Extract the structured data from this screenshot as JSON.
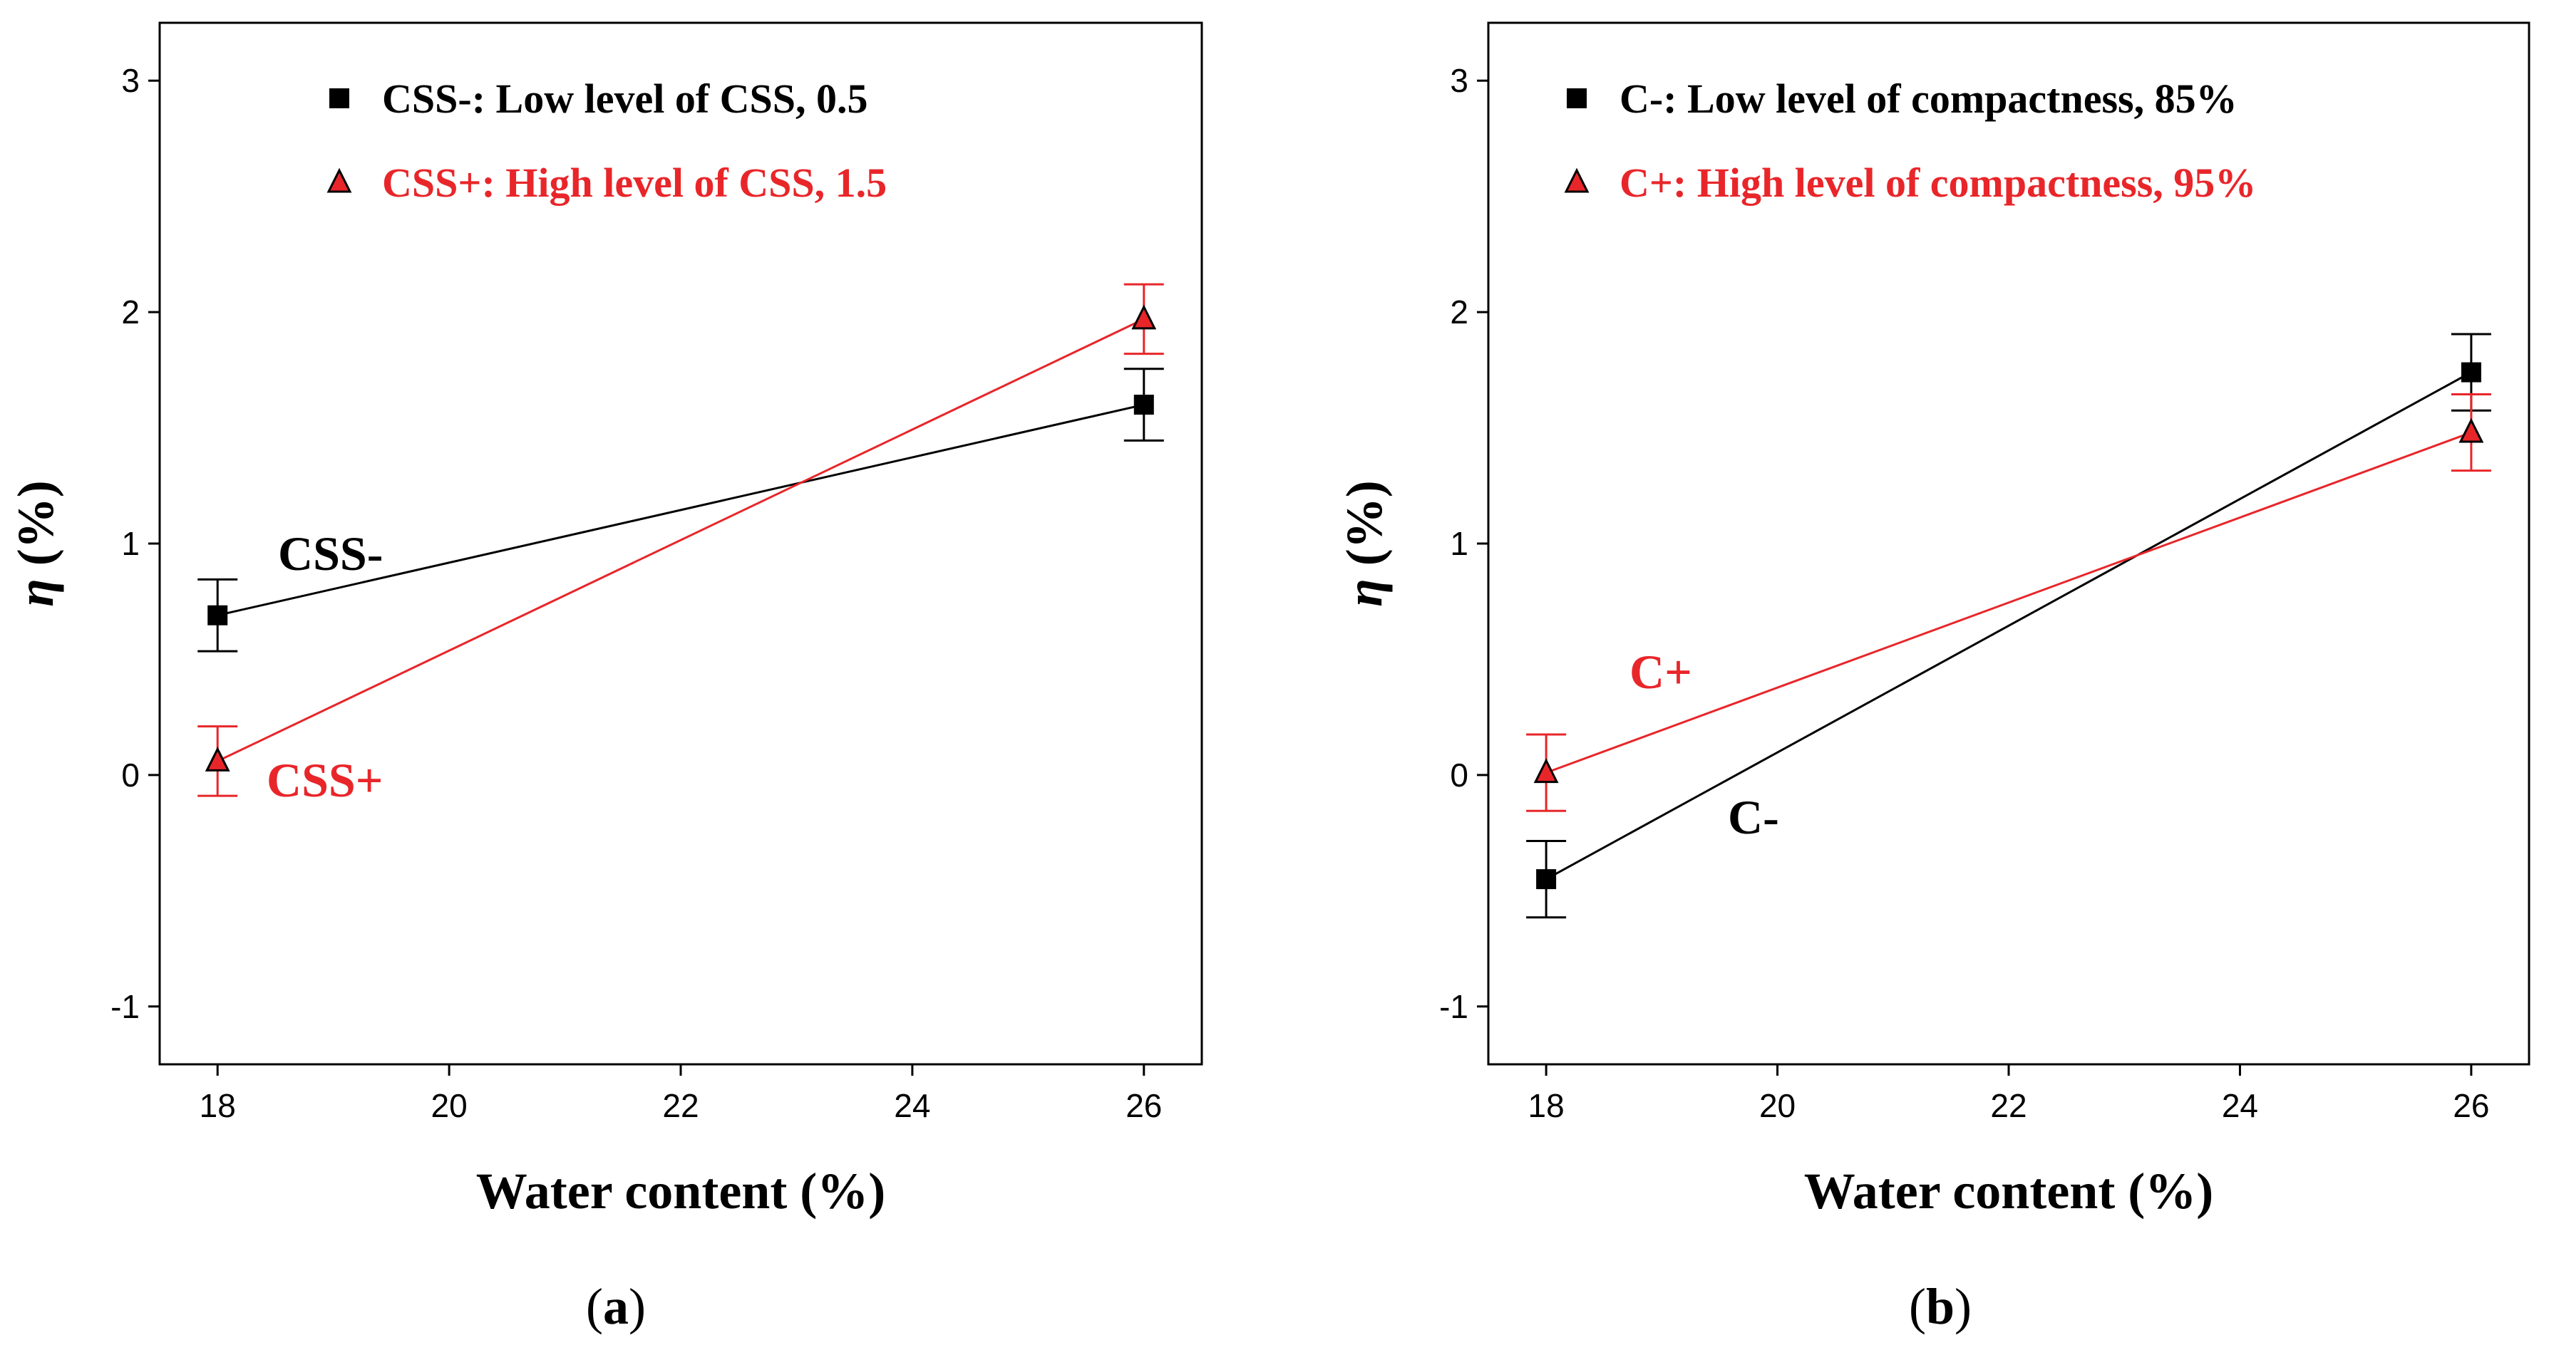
{
  "chart_data": [
    {
      "type": "line",
      "panel_label": "a",
      "xlabel": "Water content (%)",
      "ylabel_symbol": "η",
      "ylabel_unit": "(%)",
      "xlim": [
        17.5,
        26.5
      ],
      "ylim": [
        -1.25,
        3.25
      ],
      "xticks": [
        18,
        20,
        22,
        24,
        26
      ],
      "yticks": [
        -1,
        0,
        1,
        2,
        3
      ],
      "x": [
        18,
        26
      ],
      "series": [
        {
          "name": "CSS-: Low level of CSS, 0.5",
          "short": "CSS-",
          "marker": "square",
          "color": "#000000",
          "values": [
            0.69,
            1.6
          ],
          "errors": [
            0.155,
            0.155
          ]
        },
        {
          "name": "CSS+: High level of CSS, 1.5",
          "short": "CSS+",
          "marker": "triangle",
          "color": "#e8262a",
          "values": [
            0.06,
            1.97
          ],
          "errors": [
            0.15,
            0.15
          ]
        }
      ]
    },
    {
      "type": "line",
      "panel_label": "b",
      "xlabel": "Water content (%)",
      "ylabel_symbol": "η",
      "ylabel_unit": "(%)",
      "xlim": [
        17.5,
        26.5
      ],
      "ylim": [
        -1.25,
        3.25
      ],
      "xticks": [
        18,
        20,
        22,
        24,
        26
      ],
      "yticks": [
        -1,
        0,
        1,
        2,
        3
      ],
      "x": [
        18,
        26
      ],
      "series": [
        {
          "name": "C-: Low level of compactness, 85%",
          "short": "C-",
          "marker": "square",
          "color": "#000000",
          "values": [
            -0.45,
            1.74
          ],
          "errors": [
            0.165,
            0.165
          ]
        },
        {
          "name": "C+: High level of compactness, 95%",
          "short": "C+",
          "marker": "triangle",
          "color": "#e8262a",
          "values": [
            0.01,
            1.48
          ],
          "errors": [
            0.165,
            0.165
          ]
        }
      ]
    }
  ]
}
